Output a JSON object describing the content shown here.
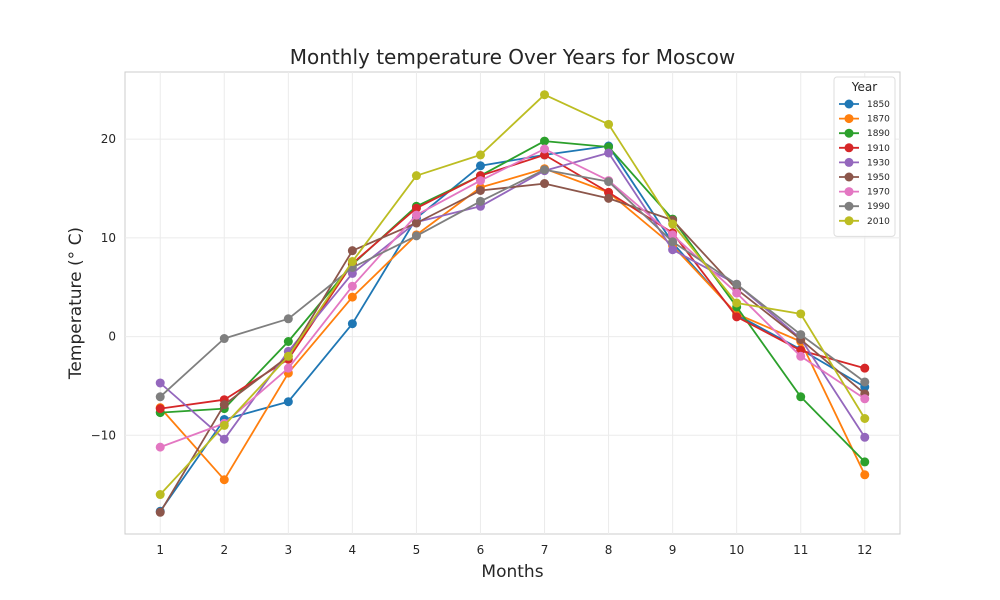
{
  "chart_data": {
    "type": "line",
    "title": "Monthly temperature Over Years for Moscow",
    "xlabel": "Months",
    "ylabel": "Temperature (° C)",
    "x": [
      1,
      2,
      3,
      4,
      5,
      6,
      7,
      8,
      9,
      10,
      11,
      12
    ],
    "xlim": [
      0.45,
      12.55
    ],
    "ylim": [
      -20.0,
      26.8
    ],
    "yticks": [
      -10,
      0,
      10,
      20
    ],
    "grid": true,
    "legend": {
      "title": "Year",
      "placement": "top-right"
    },
    "series": [
      {
        "name": "1850",
        "color": "#1f77b4",
        "values": [
          -17.7,
          -8.4,
          -6.6,
          1.3,
          12.0,
          17.3,
          18.4,
          19.3,
          9.5,
          2.2,
          -1.3,
          -5.1
        ]
      },
      {
        "name": "1870",
        "color": "#ff7f0e",
        "values": [
          -7.2,
          -14.5,
          -3.7,
          4.0,
          10.3,
          15.1,
          17.0,
          14.6,
          9.2,
          2.3,
          -0.5,
          -14.0
        ]
      },
      {
        "name": "1890",
        "color": "#2ca02c",
        "values": [
          -7.7,
          -7.3,
          -0.5,
          7.3,
          13.2,
          16.3,
          19.8,
          19.2,
          11.9,
          3.0,
          -6.1,
          -12.7
        ]
      },
      {
        "name": "1910",
        "color": "#d62728",
        "values": [
          -7.3,
          -6.4,
          -2.3,
          7.4,
          13.0,
          16.3,
          18.4,
          14.6,
          10.5,
          2.0,
          -1.4,
          -3.2
        ]
      },
      {
        "name": "1930",
        "color": "#9467bd",
        "values": [
          -4.7,
          -10.4,
          -1.5,
          6.4,
          11.6,
          13.2,
          16.8,
          18.6,
          8.8,
          5.3,
          -0.2,
          -10.2
        ]
      },
      {
        "name": "1950",
        "color": "#8c564b",
        "values": [
          -17.8,
          -6.9,
          -2.0,
          8.7,
          11.5,
          14.8,
          15.5,
          14.0,
          11.8,
          4.8,
          -0.3,
          -5.8
        ]
      },
      {
        "name": "1970",
        "color": "#e377c2",
        "values": [
          -11.2,
          -8.8,
          -3.2,
          5.1,
          12.3,
          15.8,
          19.0,
          15.8,
          10.3,
          4.4,
          -2.0,
          -6.3
        ]
      },
      {
        "name": "1990",
        "color": "#7f7f7f",
        "values": [
          -6.1,
          -0.2,
          1.8,
          7.0,
          10.2,
          13.7,
          16.9,
          15.7,
          9.6,
          5.3,
          0.2,
          -4.6
        ]
      },
      {
        "name": "2010",
        "color": "#bcbd22",
        "values": [
          -16.0,
          -9.0,
          -2.0,
          7.6,
          16.3,
          18.4,
          24.5,
          21.5,
          11.4,
          3.4,
          2.3,
          -8.3
        ]
      }
    ]
  }
}
